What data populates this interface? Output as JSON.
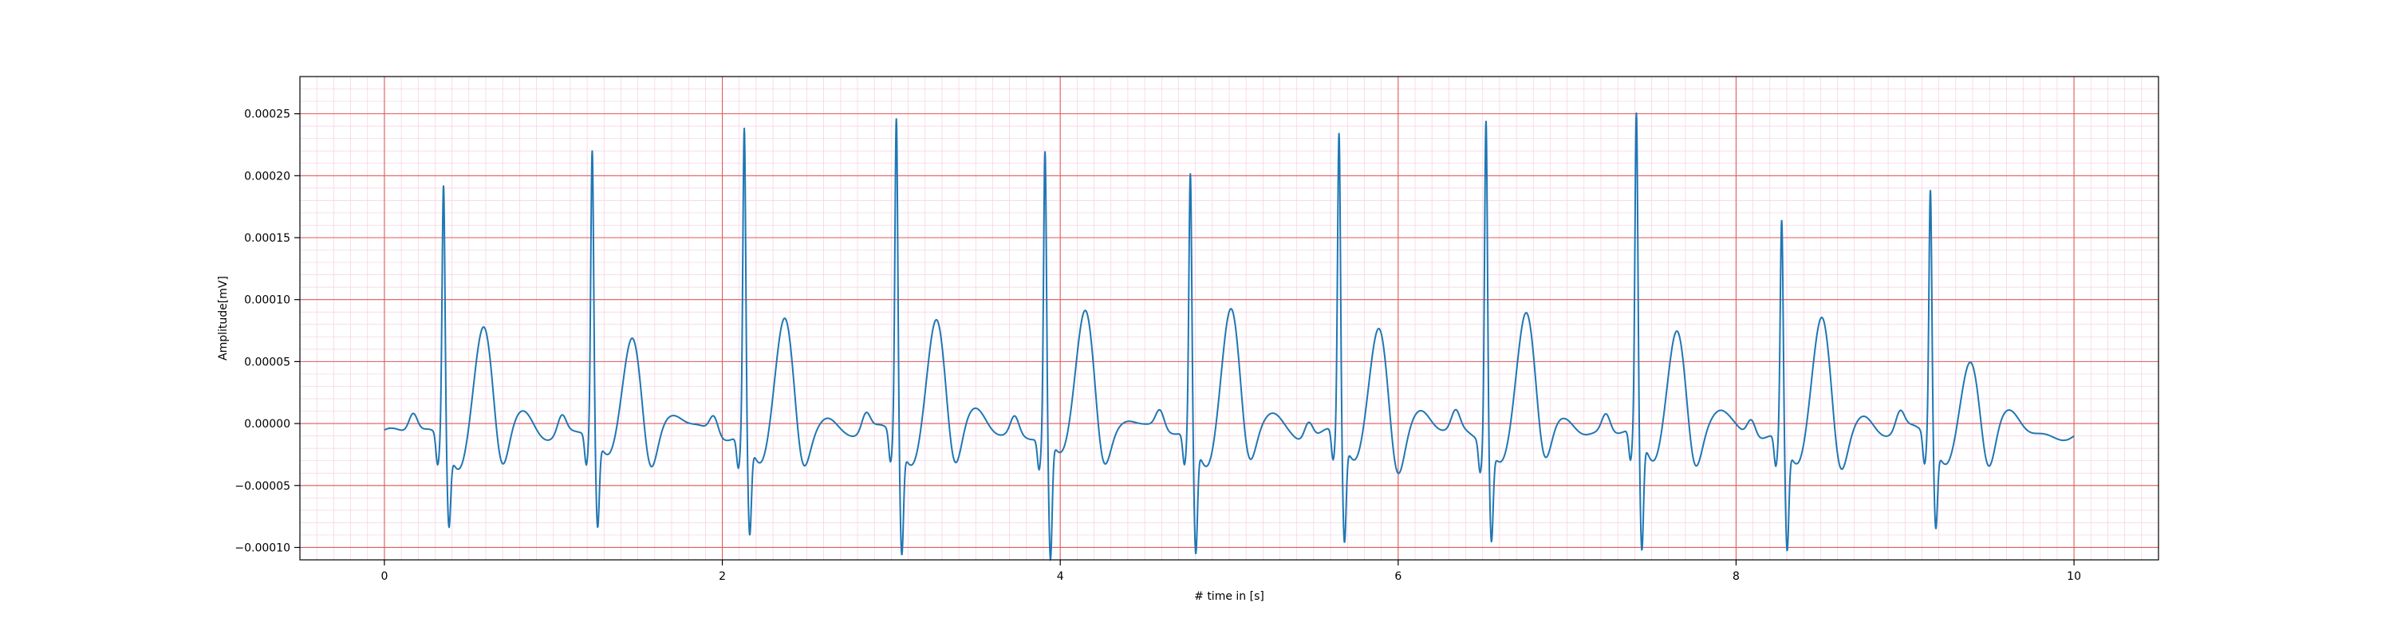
{
  "chart_data": {
    "type": "line",
    "title": "",
    "xlabel": "# time in [s]",
    "ylabel": "Amplitude[mV]",
    "xlim": [
      -0.5,
      10.5
    ],
    "ylim": [
      -0.00011,
      0.00028
    ],
    "grid": true,
    "grid_style": {
      "major_color": "#e05a5a",
      "minor_color": "#f6cfe0"
    },
    "line_color": "#1f77b4",
    "x_ticks": [
      0,
      2,
      4,
      6,
      8,
      10
    ],
    "x_tick_labels": [
      "0",
      "2",
      "4",
      "6",
      "8",
      "10"
    ],
    "y_ticks": [
      -0.0001,
      -5e-05,
      0,
      5e-05,
      0.0001,
      0.00015,
      0.0002,
      0.00025
    ],
    "y_tick_labels": [
      "−0.00010",
      "−0.00005",
      "0.00000",
      "0.00005",
      "0.00010",
      "0.00015",
      "0.00020",
      "0.00025"
    ],
    "x_range": [
      0,
      10
    ],
    "beats": [
      {
        "t": 0.35,
        "r": 0.000207,
        "s": -6e-05,
        "t_wave": 6.5e-05
      },
      {
        "t": 1.23,
        "r": 0.000231,
        "s": -6.9e-05,
        "t_wave": 6.5e-05
      },
      {
        "t": 2.13,
        "r": 0.000251,
        "s": -7.2e-05,
        "t_wave": 6.9e-05
      },
      {
        "t": 3.03,
        "r": 0.000259,
        "s": -8.5e-05,
        "t_wave": 7.7e-05
      },
      {
        "t": 3.91,
        "r": 0.000232,
        "s": -9.5e-05,
        "t_wave": 8.3e-05
      },
      {
        "t": 4.77,
        "r": 0.000213,
        "s": -8.7e-05,
        "t_wave": 8.1e-05
      },
      {
        "t": 5.65,
        "r": 0.000243,
        "s": -8e-05,
        "t_wave": 6.7e-05
      },
      {
        "t": 6.52,
        "r": 0.000263,
        "s": -7.2e-05,
        "t_wave": 7.9e-05
      },
      {
        "t": 7.41,
        "r": 0.000257,
        "s": -9e-05,
        "t_wave": 6.8e-05
      },
      {
        "t": 8.27,
        "r": 0.000177,
        "s": -8.3e-05,
        "t_wave": 6.9e-05
      },
      {
        "t": 9.15,
        "r": 0.000202,
        "s": -6.4e-05,
        "t_wave": 4.4e-05
      }
    ]
  }
}
